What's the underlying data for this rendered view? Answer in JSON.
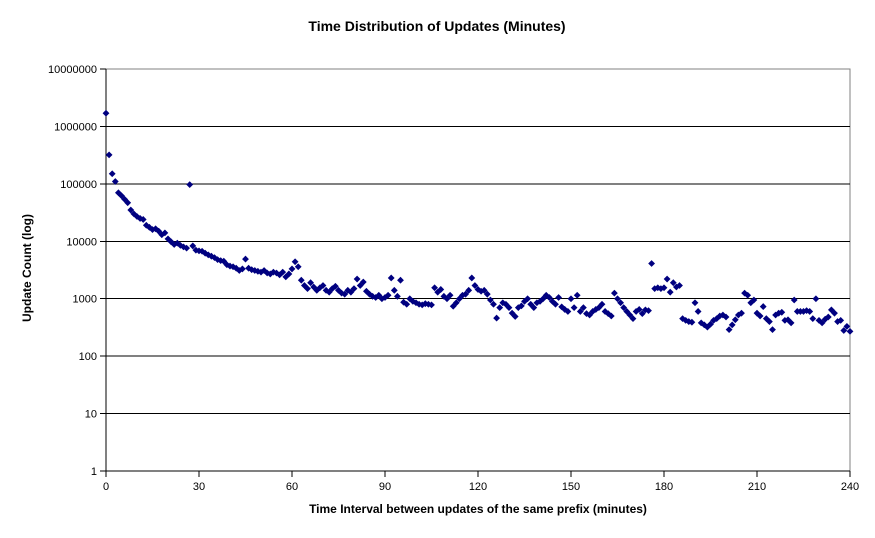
{
  "chart": {
    "title": "Time Distribution of Updates (Minutes)",
    "y_axis": {
      "label": "Update Count (log)",
      "tick_labels": [
        "1",
        "10",
        "100",
        "1000",
        "10000",
        "100000",
        "1000000",
        "10000000"
      ]
    },
    "x_axis": {
      "label": "Time Interval between updates of the same prefix (minutes)",
      "tick_labels": [
        "0",
        "30",
        "60",
        "90",
        "120",
        "150",
        "180",
        "210",
        "240"
      ]
    },
    "colors": {
      "marker": "#000080",
      "gridline": "#000000",
      "axis": "#000000",
      "plot_border": "#808080",
      "background": "#ffffff",
      "text": "#000000"
    }
  },
  "chart_data": {
    "type": "scatter",
    "title": "Time Distribution of Updates (Minutes)",
    "xlabel": "Time Interval between updates of the same prefix (minutes)",
    "ylabel": "Update Count (log)",
    "marker": "diamond",
    "legend": "none",
    "grid": "horizontal-log-decades",
    "y_scale": "log10",
    "xlim": [
      0,
      240
    ],
    "x_tick_step": 30,
    "ylim": [
      1,
      10000000
    ],
    "x_minutes": [
      0,
      1,
      2,
      3,
      4,
      5,
      6,
      7,
      8,
      9,
      10,
      11,
      12,
      13,
      14,
      15,
      16,
      17,
      18,
      19,
      20,
      21,
      22,
      23,
      24,
      25,
      26,
      27,
      28,
      29,
      30,
      31,
      32,
      33,
      34,
      35,
      36,
      37,
      38,
      39,
      40,
      41,
      42,
      43,
      44,
      45,
      46,
      47,
      48,
      49,
      50,
      51,
      52,
      53,
      54,
      55,
      56,
      57,
      58,
      59,
      60,
      61,
      62,
      63,
      64,
      65,
      66,
      67,
      68,
      69,
      70,
      71,
      72,
      73,
      74,
      75,
      76,
      77,
      78,
      79,
      80,
      81,
      82,
      83,
      84,
      85,
      86,
      87,
      88,
      89,
      90,
      91,
      92,
      93,
      94,
      95,
      96,
      97,
      98,
      99,
      100,
      101,
      102,
      103,
      104,
      105,
      106,
      107,
      108,
      109,
      110,
      111,
      112,
      113,
      114,
      115,
      116,
      117,
      118,
      119,
      120,
      121,
      122,
      123,
      124,
      125,
      126,
      127,
      128,
      129,
      130,
      131,
      132,
      133,
      134,
      135,
      136,
      137,
      138,
      139,
      140,
      141,
      142,
      143,
      144,
      145,
      146,
      147,
      148,
      149,
      150,
      151,
      152,
      153,
      154,
      155,
      156,
      157,
      158,
      159,
      160,
      161,
      162,
      163,
      164,
      165,
      166,
      167,
      168,
      169,
      170,
      171,
      172,
      173,
      174,
      175,
      176,
      177,
      178,
      179,
      180,
      181,
      182,
      183,
      184,
      185,
      186,
      187,
      188,
      189,
      190,
      191,
      192,
      193,
      194,
      195,
      196,
      197,
      198,
      199,
      200,
      201,
      202,
      203,
      204,
      205,
      206,
      207,
      208,
      209,
      210,
      211,
      212,
      213,
      214,
      215,
      216,
      217,
      218,
      219,
      220,
      221,
      222,
      223,
      224,
      225,
      226,
      227,
      228,
      229,
      230,
      231,
      232,
      233,
      234,
      235,
      236,
      237,
      238,
      239,
      240
    ],
    "update_counts": [
      1700000,
      320000,
      150000,
      110000,
      70000,
      62000,
      54000,
      47000,
      35000,
      30000,
      27000,
      25000,
      24000,
      19000,
      17500,
      16000,
      16500,
      15000,
      13000,
      14000,
      11000,
      9800,
      8800,
      9300,
      8500,
      8000,
      7600,
      97000,
      8300,
      7000,
      6800,
      6700,
      6200,
      5800,
      5500,
      5200,
      4800,
      4600,
      4500,
      3900,
      3700,
      3600,
      3400,
      3100,
      3300,
      4900,
      3400,
      3200,
      3100,
      3000,
      2900,
      3100,
      2800,
      2700,
      2900,
      2800,
      2600,
      2900,
      2400,
      2700,
      3300,
      4400,
      3600,
      2100,
      1700,
      1500,
      1900,
      1600,
      1400,
      1550,
      1700,
      1400,
      1300,
      1500,
      1650,
      1400,
      1250,
      1200,
      1400,
      1300,
      1500,
      2200,
      1700,
      1950,
      1350,
      1200,
      1100,
      1050,
      1150,
      1000,
      1050,
      1150,
      2300,
      1400,
      1100,
      2100,
      870,
      800,
      1000,
      900,
      850,
      800,
      780,
      820,
      800,
      780,
      1550,
      1300,
      1450,
      1100,
      1000,
      1150,
      740,
      850,
      1000,
      1150,
      1200,
      1400,
      2300,
      1700,
      1450,
      1350,
      1400,
      1200,
      950,
      800,
      460,
      700,
      850,
      800,
      700,
      560,
      490,
      700,
      750,
      900,
      1000,
      800,
      700,
      850,
      900,
      1000,
      1150,
      1050,
      900,
      800,
      1050,
      720,
      650,
      600,
      1000,
      700,
      1150,
      600,
      700,
      550,
      520,
      600,
      650,
      700,
      800,
      600,
      550,
      500,
      1250,
      1000,
      850,
      700,
      600,
      520,
      450,
      600,
      650,
      550,
      640,
      620,
      4100,
      1500,
      1550,
      1500,
      1550,
      2200,
      1300,
      1900,
      1600,
      1700,
      450,
      420,
      400,
      390,
      850,
      600,
      380,
      350,
      320,
      360,
      420,
      450,
      500,
      520,
      480,
      290,
      350,
      430,
      520,
      560,
      1250,
      1150,
      850,
      950,
      560,
      500,
      730,
      450,
      400,
      290,
      520,
      560,
      580,
      420,
      430,
      380,
      950,
      600,
      600,
      600,
      620,
      600,
      450,
      1000,
      420,
      380,
      440,
      480,
      640,
      560,
      400,
      420,
      280,
      330,
      270
    ]
  }
}
